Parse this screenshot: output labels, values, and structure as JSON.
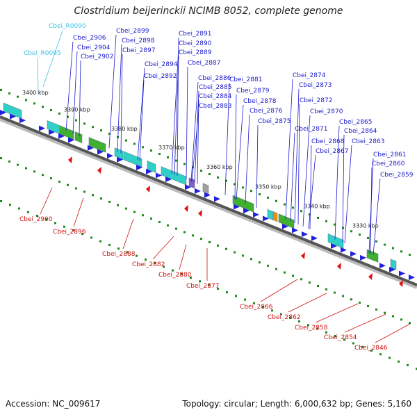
{
  "title": "Clostridium beijerinckii NCIMB 8052, complete genome",
  "footer": {
    "accession": "Accession: NC_009617",
    "summary": "Topology: circular; Length: 6,000,632 bp; Genes: 5,160"
  },
  "colors": {
    "forward_gene": "#2020e0",
    "reverse_gene": "#e01010",
    "cyan_label": "#40c0e8",
    "blue_label": "#1a1acc",
    "red_label": "#cc1010",
    "backbone": "#555555",
    "ticks_green": "#1a8a1a",
    "cog_cyan": "#30d0c8",
    "cog_green": "#40b030",
    "cog_orange": "#f09010",
    "cog_grey": "#a0a0a0",
    "cog_purple": "#8060c0"
  },
  "kbp_ticks": [
    "3400 kbp",
    "3390 kbp",
    "3380 kbp",
    "3370 kbp",
    "3360 kbp",
    "3350 kbp",
    "3340 kbp",
    "3330 kbp"
  ],
  "top_labels_cyan": [
    "Cbei_R0090",
    "Cbei_R0095"
  ],
  "top_labels_blue": [
    "Cbei_2906",
    "Cbei_2904",
    "Cbei_2902",
    "Cbei_2899",
    "Cbei_2898",
    "Cbei_2897",
    "Cbei_2894",
    "Cbei_2892",
    "Cbei_2891",
    "Cbei_2890",
    "Cbei_2889",
    "Cbei_2887",
    "Cbei_2886",
    "Cbei_2885",
    "Cbei_2884",
    "Cbei_2883",
    "Cbei_2881",
    "Cbei_2879",
    "Cbei_2878",
    "Cbei_2876",
    "Cbei_2875",
    "Cbei_2874",
    "Cbei_2873",
    "Cbei_2872",
    "Cbei_2870",
    "Cbei_2871",
    "Cbei_2868",
    "Cbei_2867",
    "Cbei_2865",
    "Cbei_2864",
    "Cbei_2863",
    "Cbei_2861",
    "Cbei_2860",
    "Cbei_2859"
  ],
  "bottom_labels_red": [
    "Cbei_2900",
    "Cbei_2896",
    "Cbei_2888",
    "Cbei_2882",
    "Cbei_2880",
    "Cbei_2877",
    "Cbei_2866",
    "Cbei_2862",
    "Cbei_2858",
    "Cbei_2854",
    "Cbei_2846"
  ]
}
